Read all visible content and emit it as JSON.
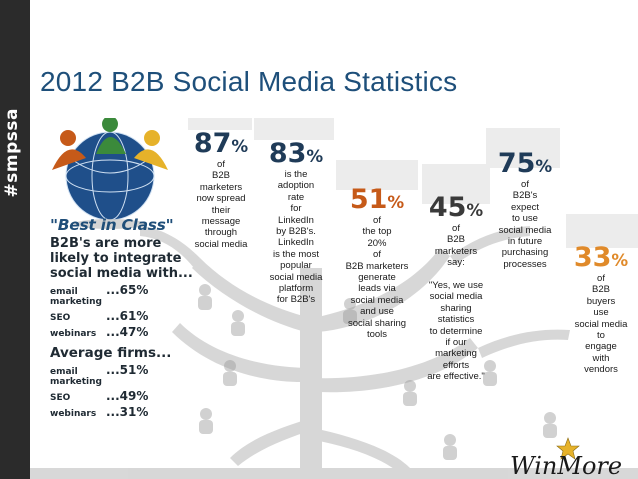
{
  "side_tag": "#smpssa",
  "title": "2012 B2B Social Media Statistics",
  "stats": [
    {
      "value": "87",
      "unit": "%",
      "text": "of\nB2B\nmarketers\nnow spread\ntheir\nmessage\nthrough\nsocial media"
    },
    {
      "value": "83",
      "unit": "%",
      "text": "is the\nadoption\nrate\nfor\nLinkedIn\nby B2B's.\nLinkedIn\nis the most\npopular\nsocial media\nplatform\nfor B2B's"
    },
    {
      "value": "51",
      "unit": "%",
      "text": "of\nthe top\n20%\nof\nB2B marketers\ngenerate\nleads via\nsocial media\nand use\nsocial sharing\ntools"
    },
    {
      "value": "45",
      "unit": "%",
      "text": "of\nB2B\nmarketers\nsay:\n\n\"Yes, we use\nsocial media\nsharing\nstatistics\nto determine\nif our\nmarketing\nefforts\nare effective.\""
    },
    {
      "value": "75",
      "unit": "%",
      "text": "of\nB2B's\nexpect\nto use\nsocial media\nin future\npurchasing\nprocesses"
    },
    {
      "value": "33",
      "unit": "%",
      "text": "of\nB2B\nbuyers\nuse\nsocial media\nto\nengage\nwith\nvendors"
    }
  ],
  "best_in_class": {
    "heading": "\"Best in Class\"",
    "lead": "B2B's are more\nlikely to integrate\nsocial media with...",
    "rows": [
      {
        "label": "email\nmarketing",
        "value": "...65%"
      },
      {
        "label": "SEO",
        "value": "...61%"
      },
      {
        "label": "webinars",
        "value": "...47%"
      }
    ]
  },
  "average": {
    "heading": "Average firms...",
    "rows": [
      {
        "label": "email\nmarketing",
        "value": "...51%"
      },
      {
        "label": "SEO",
        "value": "...49%"
      },
      {
        "label": "webinars",
        "value": "...31%"
      }
    ]
  },
  "logo": {
    "part1": "Win",
    "part2": "More"
  },
  "colors": {
    "navy": "#1f3b58",
    "orange": "#c65a19",
    "gold": "#e08a2a",
    "title_blue": "#1e4f7a"
  }
}
